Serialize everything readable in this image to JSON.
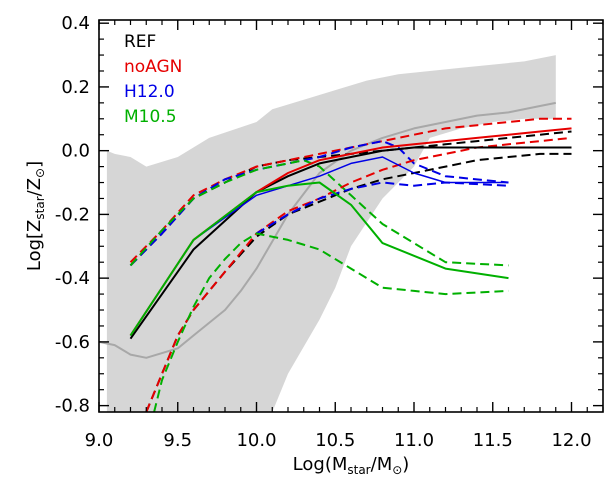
{
  "chart_data": {
    "type": "line",
    "xlabel": {
      "pre": "Log(M",
      "sub": "star",
      "mid": "/M",
      "sym": "⊙",
      "post": ")"
    },
    "ylabel": {
      "pre": "Log[Z",
      "sub": "star",
      "mid": "/Z",
      "sym": "⊙",
      "post": "]"
    },
    "xlim": [
      9.0,
      12.2
    ],
    "ylim": [
      -0.82,
      0.41
    ],
    "xticks": [
      "9.0",
      "9.5",
      "10.0",
      "10.5",
      "11.0",
      "11.5",
      "12.0"
    ],
    "xtick_values": [
      9.0,
      9.5,
      10.0,
      10.5,
      11.0,
      11.5,
      12.0
    ],
    "yticks": [
      "-0.8",
      "-0.6",
      "-0.4",
      "-0.2",
      "0.0",
      "0.2",
      "0.4"
    ],
    "ytick_values": [
      -0.8,
      -0.6,
      -0.4,
      -0.2,
      0.0,
      0.2,
      0.4
    ],
    "legend": [
      {
        "name": "REF",
        "color": "#000000"
      },
      {
        "name": "noAGN",
        "color": "#e60000"
      },
      {
        "name": "H12.0",
        "color": "#0000e6"
      },
      {
        "name": "M10.5",
        "color": "#00b000"
      }
    ],
    "band": {
      "color": "#d6d6d6",
      "upper": [
        [
          9.05,
          0.0
        ],
        [
          9.1,
          -0.01
        ],
        [
          9.2,
          -0.02
        ],
        [
          9.3,
          -0.05
        ],
        [
          9.5,
          -0.02
        ],
        [
          9.7,
          0.04
        ],
        [
          10.0,
          0.09
        ],
        [
          10.1,
          0.13
        ],
        [
          10.3,
          0.16
        ],
        [
          10.5,
          0.19
        ],
        [
          10.7,
          0.22
        ],
        [
          10.9,
          0.24
        ],
        [
          11.1,
          0.25
        ],
        [
          11.3,
          0.26
        ],
        [
          11.5,
          0.27
        ],
        [
          11.7,
          0.28
        ],
        [
          11.9,
          0.3
        ]
      ],
      "lower": [
        [
          11.9,
          0.1
        ],
        [
          11.7,
          0.1
        ],
        [
          11.5,
          0.09
        ],
        [
          11.3,
          0.07
        ],
        [
          11.1,
          0.04
        ],
        [
          11.0,
          -0.05
        ],
        [
          10.8,
          -0.15
        ],
        [
          10.6,
          -0.3
        ],
        [
          10.5,
          -0.43
        ],
        [
          10.4,
          -0.53
        ],
        [
          10.2,
          -0.7
        ],
        [
          10.1,
          -0.82
        ],
        [
          9.05,
          -0.82
        ]
      ]
    },
    "series": [
      {
        "color": "#a8a8a8",
        "dash": false,
        "width": 2,
        "x": [
          9.0,
          9.1,
          9.2,
          9.3,
          9.5,
          9.6,
          9.8,
          9.9,
          10.0,
          10.2,
          10.4,
          10.6,
          10.8,
          11.0,
          11.2,
          11.4,
          11.6,
          11.8,
          11.9
        ],
        "y": [
          -0.6,
          -0.61,
          -0.64,
          -0.65,
          -0.62,
          -0.58,
          -0.5,
          -0.44,
          -0.37,
          -0.2,
          -0.07,
          0.0,
          0.04,
          0.07,
          0.09,
          0.11,
          0.12,
          0.14,
          0.15
        ]
      },
      {
        "color": "#000000",
        "dash": true,
        "width": 2,
        "x": [
          9.2,
          9.4,
          9.6,
          9.8,
          10.0,
          10.2,
          10.4,
          10.6,
          10.8,
          11.0,
          11.2,
          11.4,
          11.6,
          11.8,
          12.0
        ],
        "y": [
          -0.36,
          -0.26,
          -0.15,
          -0.1,
          -0.05,
          -0.03,
          -0.02,
          -0.01,
          0.0,
          0.01,
          0.02,
          0.03,
          0.04,
          0.05,
          0.06
        ]
      },
      {
        "color": "#e60000",
        "dash": true,
        "width": 2,
        "x": [
          9.2,
          9.4,
          9.6,
          9.8,
          10.0,
          10.2,
          10.4,
          10.6,
          10.8,
          11.0,
          11.2,
          11.4,
          11.6,
          11.8,
          12.0
        ],
        "y": [
          -0.35,
          -0.25,
          -0.14,
          -0.09,
          -0.05,
          -0.03,
          -0.01,
          0.01,
          0.03,
          0.05,
          0.07,
          0.08,
          0.09,
          0.1,
          0.1
        ]
      },
      {
        "color": "#0000e6",
        "dash": true,
        "width": 2,
        "x": [
          9.2,
          9.4,
          9.6,
          9.8,
          10.0,
          10.2,
          10.4,
          10.6,
          10.8,
          10.9,
          11.0,
          11.2,
          11.6
        ],
        "y": [
          -0.36,
          -0.26,
          -0.15,
          -0.09,
          -0.06,
          -0.04,
          -0.02,
          0.01,
          0.03,
          0.01,
          -0.04,
          -0.08,
          -0.1
        ]
      },
      {
        "color": "#00b000",
        "dash": true,
        "width": 2,
        "x": [
          9.2,
          9.4,
          9.6,
          9.8,
          10.0,
          10.2,
          10.3,
          10.4,
          10.6,
          10.8,
          11.2,
          11.6
        ],
        "y": [
          -0.36,
          -0.25,
          -0.15,
          -0.1,
          -0.06,
          -0.04,
          -0.03,
          -0.05,
          -0.14,
          -0.23,
          -0.35,
          -0.36
        ]
      },
      {
        "color": "#000000",
        "dash": true,
        "width": 2,
        "x": [
          9.3,
          9.4,
          9.5,
          9.6,
          9.8,
          10.0,
          10.2,
          10.4,
          10.6,
          10.8,
          11.0,
          11.2,
          11.4,
          11.6,
          11.8,
          12.0
        ],
        "y": [
          -0.82,
          -0.7,
          -0.58,
          -0.5,
          -0.38,
          -0.27,
          -0.2,
          -0.16,
          -0.12,
          -0.09,
          -0.07,
          -0.05,
          -0.03,
          -0.02,
          -0.01,
          -0.01
        ]
      },
      {
        "color": "#e60000",
        "dash": true,
        "width": 2,
        "x": [
          9.3,
          9.4,
          9.5,
          9.6,
          9.8,
          10.0,
          10.2,
          10.4,
          10.6,
          10.8,
          11.0,
          11.2,
          11.4,
          11.6,
          11.8,
          12.0
        ],
        "y": [
          -0.82,
          -0.7,
          -0.58,
          -0.5,
          -0.38,
          -0.26,
          -0.19,
          -0.15,
          -0.1,
          -0.06,
          -0.03,
          -0.01,
          0.01,
          0.02,
          0.03,
          0.04
        ]
      },
      {
        "color": "#0000e6",
        "dash": true,
        "width": 2,
        "x": [
          10.0,
          10.2,
          10.4,
          10.6,
          10.8,
          11.0,
          11.2,
          11.6
        ],
        "y": [
          -0.26,
          -0.2,
          -0.15,
          -0.12,
          -0.1,
          -0.11,
          -0.1,
          -0.11
        ]
      },
      {
        "color": "#00b000",
        "dash": true,
        "width": 2,
        "x": [
          9.35,
          9.4,
          9.5,
          9.6,
          9.7,
          9.8,
          9.9,
          10.0,
          10.2,
          10.4,
          10.6,
          10.8,
          11.0,
          11.2,
          11.6
        ],
        "y": [
          -0.82,
          -0.72,
          -0.6,
          -0.49,
          -0.4,
          -0.34,
          -0.29,
          -0.26,
          -0.28,
          -0.31,
          -0.37,
          -0.43,
          -0.44,
          -0.45,
          -0.44
        ]
      },
      {
        "color": "#000000",
        "dash": false,
        "width": 2,
        "x": [
          9.2,
          9.6,
          10.0,
          10.2,
          10.4,
          10.6,
          10.8,
          11.0,
          11.2,
          11.4,
          11.6,
          11.8,
          12.0
        ],
        "y": [
          -0.59,
          -0.31,
          -0.13,
          -0.08,
          -0.04,
          -0.02,
          0.0,
          0.01,
          0.01,
          0.01,
          0.01,
          0.01,
          0.01
        ]
      },
      {
        "color": "#e60000",
        "dash": false,
        "width": 2,
        "x": [
          9.2,
          9.6,
          10.0,
          10.2,
          10.4,
          10.6,
          10.8,
          11.0,
          11.2,
          11.4,
          11.6,
          11.8,
          12.0
        ],
        "y": [
          -0.58,
          -0.28,
          -0.13,
          -0.07,
          -0.03,
          -0.01,
          0.01,
          0.02,
          0.03,
          0.04,
          0.05,
          0.06,
          0.07
        ]
      },
      {
        "color": "#0000e6",
        "dash": false,
        "width": 1.5,
        "x": [
          9.2,
          9.6,
          10.0,
          10.4,
          10.6,
          10.8,
          11.0,
          11.2,
          11.6
        ],
        "y": [
          -0.58,
          -0.28,
          -0.14,
          -0.08,
          -0.04,
          -0.02,
          -0.07,
          -0.1,
          -0.1
        ]
      },
      {
        "color": "#00b000",
        "dash": false,
        "width": 2,
        "x": [
          9.2,
          9.6,
          10.0,
          10.2,
          10.4,
          10.6,
          10.8,
          11.0,
          11.2,
          11.6
        ],
        "y": [
          -0.58,
          -0.28,
          -0.13,
          -0.11,
          -0.1,
          -0.17,
          -0.29,
          -0.33,
          -0.37,
          -0.4
        ]
      }
    ]
  }
}
